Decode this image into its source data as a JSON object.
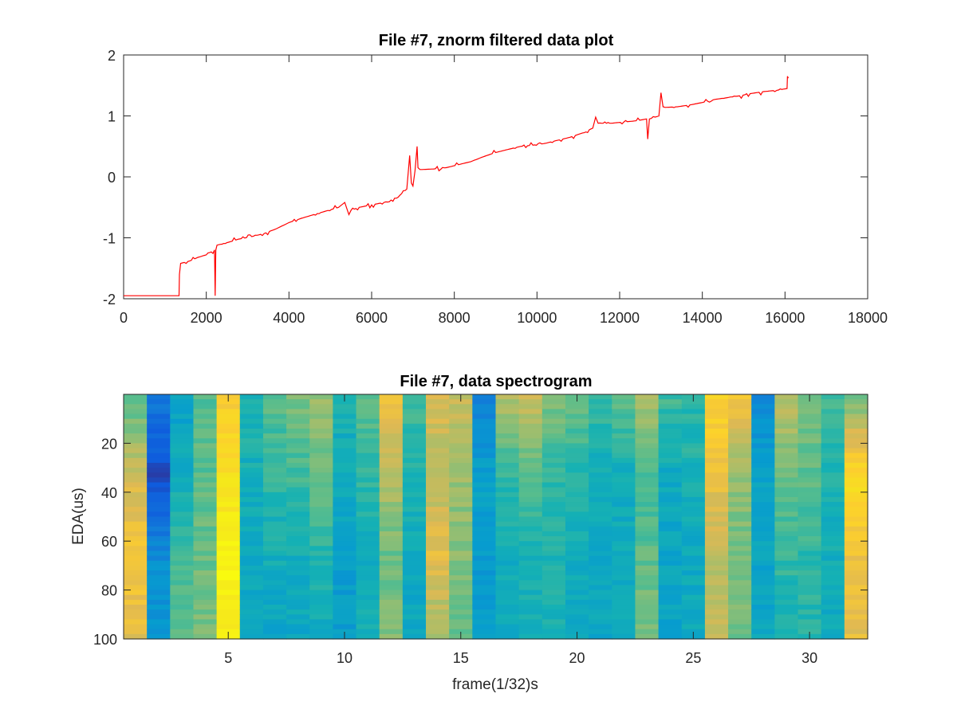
{
  "chart_data": [
    {
      "type": "line",
      "title": "File #7, znorm filtered data plot",
      "xlabel": "",
      "ylabel": "",
      "xlim": [
        0,
        18000
      ],
      "ylim": [
        -2,
        2
      ],
      "xticks": [
        0,
        2000,
        4000,
        6000,
        8000,
        10000,
        12000,
        14000,
        16000,
        18000
      ],
      "yticks": [
        -2,
        -1,
        0,
        1,
        2
      ],
      "grid": false,
      "series": [
        {
          "color": "#ff0000",
          "x": [
            0,
            1340,
            1350,
            1380,
            1600,
            1800,
            2000,
            2200,
            2215,
            2230,
            2260,
            2500,
            2800,
            3100,
            3400,
            3700,
            4000,
            4300,
            4600,
            4900,
            5200,
            5350,
            5450,
            5500,
            5700,
            6000,
            6300,
            6600,
            6850,
            6920,
            6960,
            7000,
            7050,
            7100,
            7120,
            7170,
            7220,
            7500,
            7800,
            8100,
            8400,
            8700,
            9000,
            9300,
            9600,
            9900,
            10200,
            10500,
            10800,
            11100,
            11350,
            11420,
            11480,
            11800,
            12100,
            12400,
            12650,
            12680,
            12720,
            12950,
            13000,
            13050,
            13100,
            13400,
            13700,
            14000,
            14300,
            14600,
            14900,
            15200,
            15500,
            15800,
            16050,
            16060,
            16080
          ],
          "y": [
            -1.95,
            -1.95,
            -1.6,
            -1.42,
            -1.38,
            -1.32,
            -1.28,
            -1.2,
            -1.95,
            -1.2,
            -1.12,
            -1.08,
            -1.02,
            -0.98,
            -0.93,
            -0.85,
            -0.75,
            -0.68,
            -0.62,
            -0.56,
            -0.5,
            -0.42,
            -0.62,
            -0.55,
            -0.5,
            -0.46,
            -0.42,
            -0.35,
            -0.2,
            0.35,
            -0.1,
            -0.15,
            0.1,
            0.5,
            0.15,
            0.12,
            0.12,
            0.13,
            0.15,
            0.2,
            0.25,
            0.33,
            0.4,
            0.45,
            0.5,
            0.52,
            0.55,
            0.6,
            0.65,
            0.72,
            0.8,
            0.98,
            0.88,
            0.88,
            0.9,
            0.92,
            0.95,
            0.62,
            0.95,
            1.0,
            1.38,
            1.15,
            1.14,
            1.15,
            1.18,
            1.22,
            1.27,
            1.3,
            1.33,
            1.37,
            1.4,
            1.42,
            1.45,
            1.65,
            1.62
          ]
        }
      ]
    },
    {
      "type": "heatmap",
      "title": "File #7, data spectrogram",
      "xlabel": "frame(1/32)s",
      "ylabel": "EDA(us)",
      "xlim": [
        0.5,
        32.5
      ],
      "ylim": [
        0,
        100
      ],
      "y_reversed": true,
      "xticks": [
        5,
        10,
        15,
        20,
        25,
        30
      ],
      "yticks": [
        20,
        40,
        60,
        80,
        100
      ],
      "colormap": "parula",
      "columns": 32,
      "rows": 50,
      "column_profiles": [
        [
          0.48,
          0.68,
          0.76,
          0.72
        ],
        [
          0.2,
          0.05,
          0.25,
          0.3
        ],
        [
          0.32,
          0.38,
          0.48,
          0.52
        ],
        [
          0.5,
          0.5,
          0.52,
          0.55
        ],
        [
          0.78,
          0.88,
          0.96,
          0.94
        ],
        [
          0.42,
          0.38,
          0.36,
          0.35
        ],
        [
          0.5,
          0.44,
          0.38,
          0.34
        ],
        [
          0.55,
          0.46,
          0.38,
          0.35
        ],
        [
          0.58,
          0.52,
          0.42,
          0.36
        ],
        [
          0.4,
          0.36,
          0.32,
          0.3
        ],
        [
          0.5,
          0.44,
          0.38,
          0.38
        ],
        [
          0.74,
          0.62,
          0.52,
          0.56
        ],
        [
          0.48,
          0.4,
          0.36,
          0.35
        ],
        [
          0.7,
          0.62,
          0.72,
          0.58
        ],
        [
          0.66,
          0.58,
          0.56,
          0.5
        ],
        [
          0.22,
          0.32,
          0.3,
          0.3
        ],
        [
          0.62,
          0.44,
          0.38,
          0.36
        ],
        [
          0.68,
          0.48,
          0.4,
          0.38
        ],
        [
          0.56,
          0.44,
          0.4,
          0.4
        ],
        [
          0.52,
          0.42,
          0.38,
          0.36
        ],
        [
          0.46,
          0.38,
          0.35,
          0.35
        ],
        [
          0.5,
          0.38,
          0.36,
          0.36
        ],
        [
          0.62,
          0.46,
          0.5,
          0.56
        ],
        [
          0.46,
          0.36,
          0.34,
          0.34
        ],
        [
          0.44,
          0.4,
          0.36,
          0.36
        ],
        [
          0.82,
          0.74,
          0.62,
          0.66
        ],
        [
          0.76,
          0.58,
          0.52,
          0.54
        ],
        [
          0.24,
          0.34,
          0.34,
          0.34
        ],
        [
          0.64,
          0.52,
          0.44,
          0.4
        ],
        [
          0.56,
          0.5,
          0.44,
          0.42
        ],
        [
          0.48,
          0.4,
          0.38,
          0.36
        ],
        [
          0.52,
          0.86,
          0.74,
          0.72
        ]
      ]
    }
  ]
}
